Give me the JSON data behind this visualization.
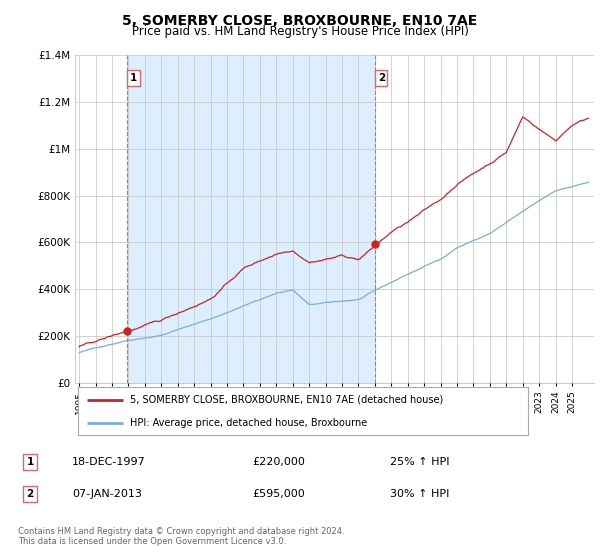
{
  "title": "5, SOMERBY CLOSE, BROXBOURNE, EN10 7AE",
  "subtitle": "Price paid vs. HM Land Registry's House Price Index (HPI)",
  "ylim": [
    0,
    1400000
  ],
  "yticks": [
    0,
    200000,
    400000,
    600000,
    800000,
    1000000,
    1200000,
    1400000
  ],
  "ytick_labels": [
    "£0",
    "£200K",
    "£400K",
    "£600K",
    "£800K",
    "£1M",
    "£1.2M",
    "£1.4M"
  ],
  "red_line_color": "#cc2222",
  "blue_line_color": "#7aade0",
  "vline_color": "#dd6666",
  "shade_color": "#ddeeff",
  "grid_color": "#cccccc",
  "background_color": "#ffffff",
  "legend_label_red": "5, SOMERBY CLOSE, BROXBOURNE, EN10 7AE (detached house)",
  "legend_label_blue": "HPI: Average price, detached house, Broxbourne",
  "table_row1": [
    "1",
    "18-DEC-1997",
    "£220,000",
    "25% ↑ HPI"
  ],
  "table_row2": [
    "2",
    "07-JAN-2013",
    "£595,000",
    "30% ↑ HPI"
  ],
  "footnote": "Contains HM Land Registry data © Crown copyright and database right 2024.\nThis data is licensed under the Open Government Licence v3.0.",
  "sale1_month": 35,
  "sale1_value": 220000,
  "sale2_month": 216,
  "sale2_value": 595000,
  "x_start_year": 1995,
  "x_end_year": 2025,
  "num_months": 373
}
